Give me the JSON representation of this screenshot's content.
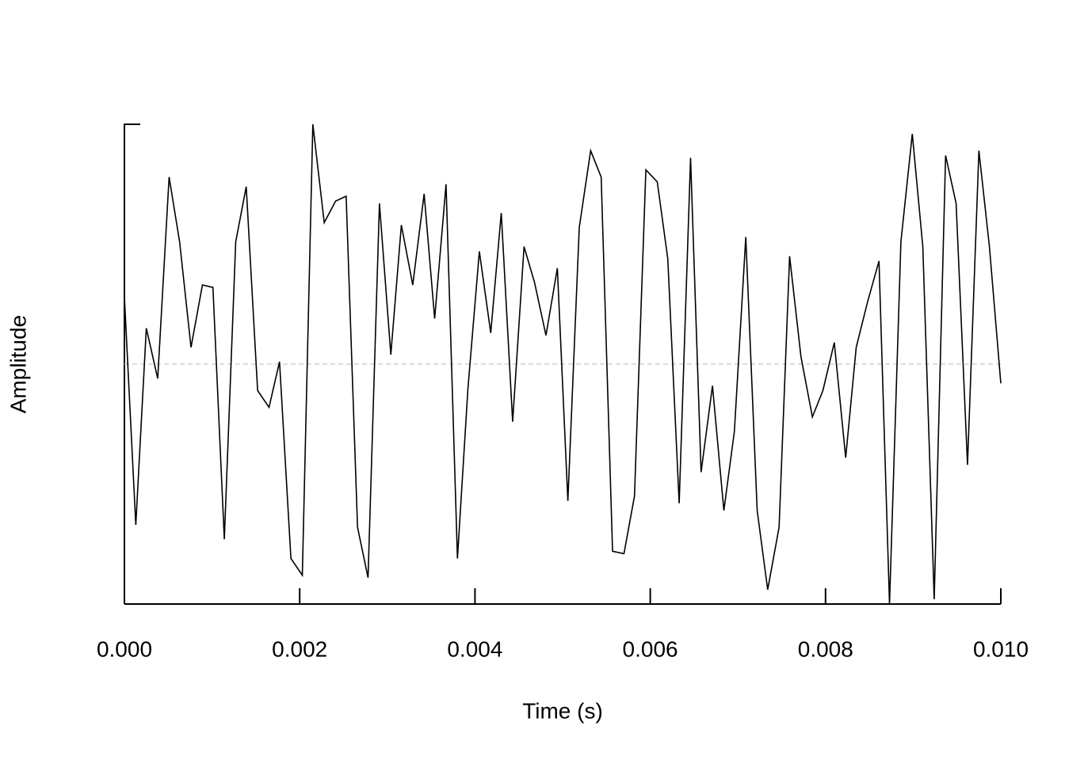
{
  "chart_data": {
    "type": "line",
    "xlabel": "Time (s)",
    "ylabel": "Amplitude",
    "x": [
      0,
      0.00013,
      0.00025,
      0.00038,
      0.00051,
      0.00063,
      0.00076,
      0.00089,
      0.00101,
      0.00114,
      0.00127,
      0.00139,
      0.00152,
      0.00165,
      0.00177,
      0.0019,
      0.00203,
      0.00215,
      0.00228,
      0.00241,
      0.00253,
      0.00266,
      0.00278,
      0.00291,
      0.00304,
      0.00316,
      0.00329,
      0.00342,
      0.00354,
      0.00367,
      0.0038,
      0.00392,
      0.00405,
      0.00418,
      0.0043,
      0.00443,
      0.00456,
      0.00468,
      0.00481,
      0.00494,
      0.00506,
      0.00519,
      0.00532,
      0.00544,
      0.00557,
      0.0057,
      0.00582,
      0.00595,
      0.00608,
      0.0062,
      0.00633,
      0.00646,
      0.00658,
      0.00671,
      0.00684,
      0.00696,
      0.00709,
      0.00722,
      0.00734,
      0.00747,
      0.00759,
      0.00772,
      0.00785,
      0.00797,
      0.0081,
      0.00823,
      0.00835,
      0.00848,
      0.00861,
      0.00873,
      0.00886,
      0.00899,
      0.00911,
      0.00924,
      0.00937,
      0.00949,
      0.00962,
      0.00975,
      0.00987,
      0.01
    ],
    "values": [
      0.28,
      -0.67,
      0.15,
      -0.06,
      0.78,
      0.51,
      0.07,
      0.33,
      0.32,
      -0.73,
      0.51,
      0.74,
      -0.11,
      -0.18,
      0.01,
      -0.81,
      -0.88,
      1.0,
      0.59,
      0.68,
      0.7,
      -0.68,
      -0.89,
      0.67,
      0.04,
      0.58,
      0.33,
      0.71,
      0.19,
      0.75,
      -0.81,
      -0.1,
      0.47,
      0.13,
      0.63,
      -0.24,
      0.49,
      0.34,
      0.12,
      0.4,
      -0.57,
      0.57,
      0.89,
      0.78,
      -0.78,
      -0.79,
      -0.55,
      0.81,
      0.76,
      0.44,
      -0.58,
      0.86,
      -0.45,
      -0.09,
      -0.61,
      -0.28,
      0.53,
      -0.61,
      -0.94,
      -0.68,
      0.45,
      0.03,
      -0.22,
      -0.11,
      0.09,
      -0.39,
      0.07,
      0.26,
      0.43,
      -1.0,
      0.51,
      0.96,
      0.49,
      -0.98,
      0.87,
      0.67,
      -0.42,
      0.89,
      0.49,
      -0.08
    ],
    "color": "#000000",
    "xlim": [
      0,
      0.01
    ],
    "xticks": [
      {
        "value": 0,
        "label": "0.000"
      },
      {
        "value": 0.002,
        "label": "0.002"
      },
      {
        "value": 0.004,
        "label": "0.004"
      },
      {
        "value": 0.006,
        "label": "0.006"
      },
      {
        "value": 0.008,
        "label": "0.008"
      },
      {
        "value": 0.01,
        "label": "0.010"
      }
    ],
    "ylim": [
      -1,
      1
    ],
    "zero_line": true
  }
}
